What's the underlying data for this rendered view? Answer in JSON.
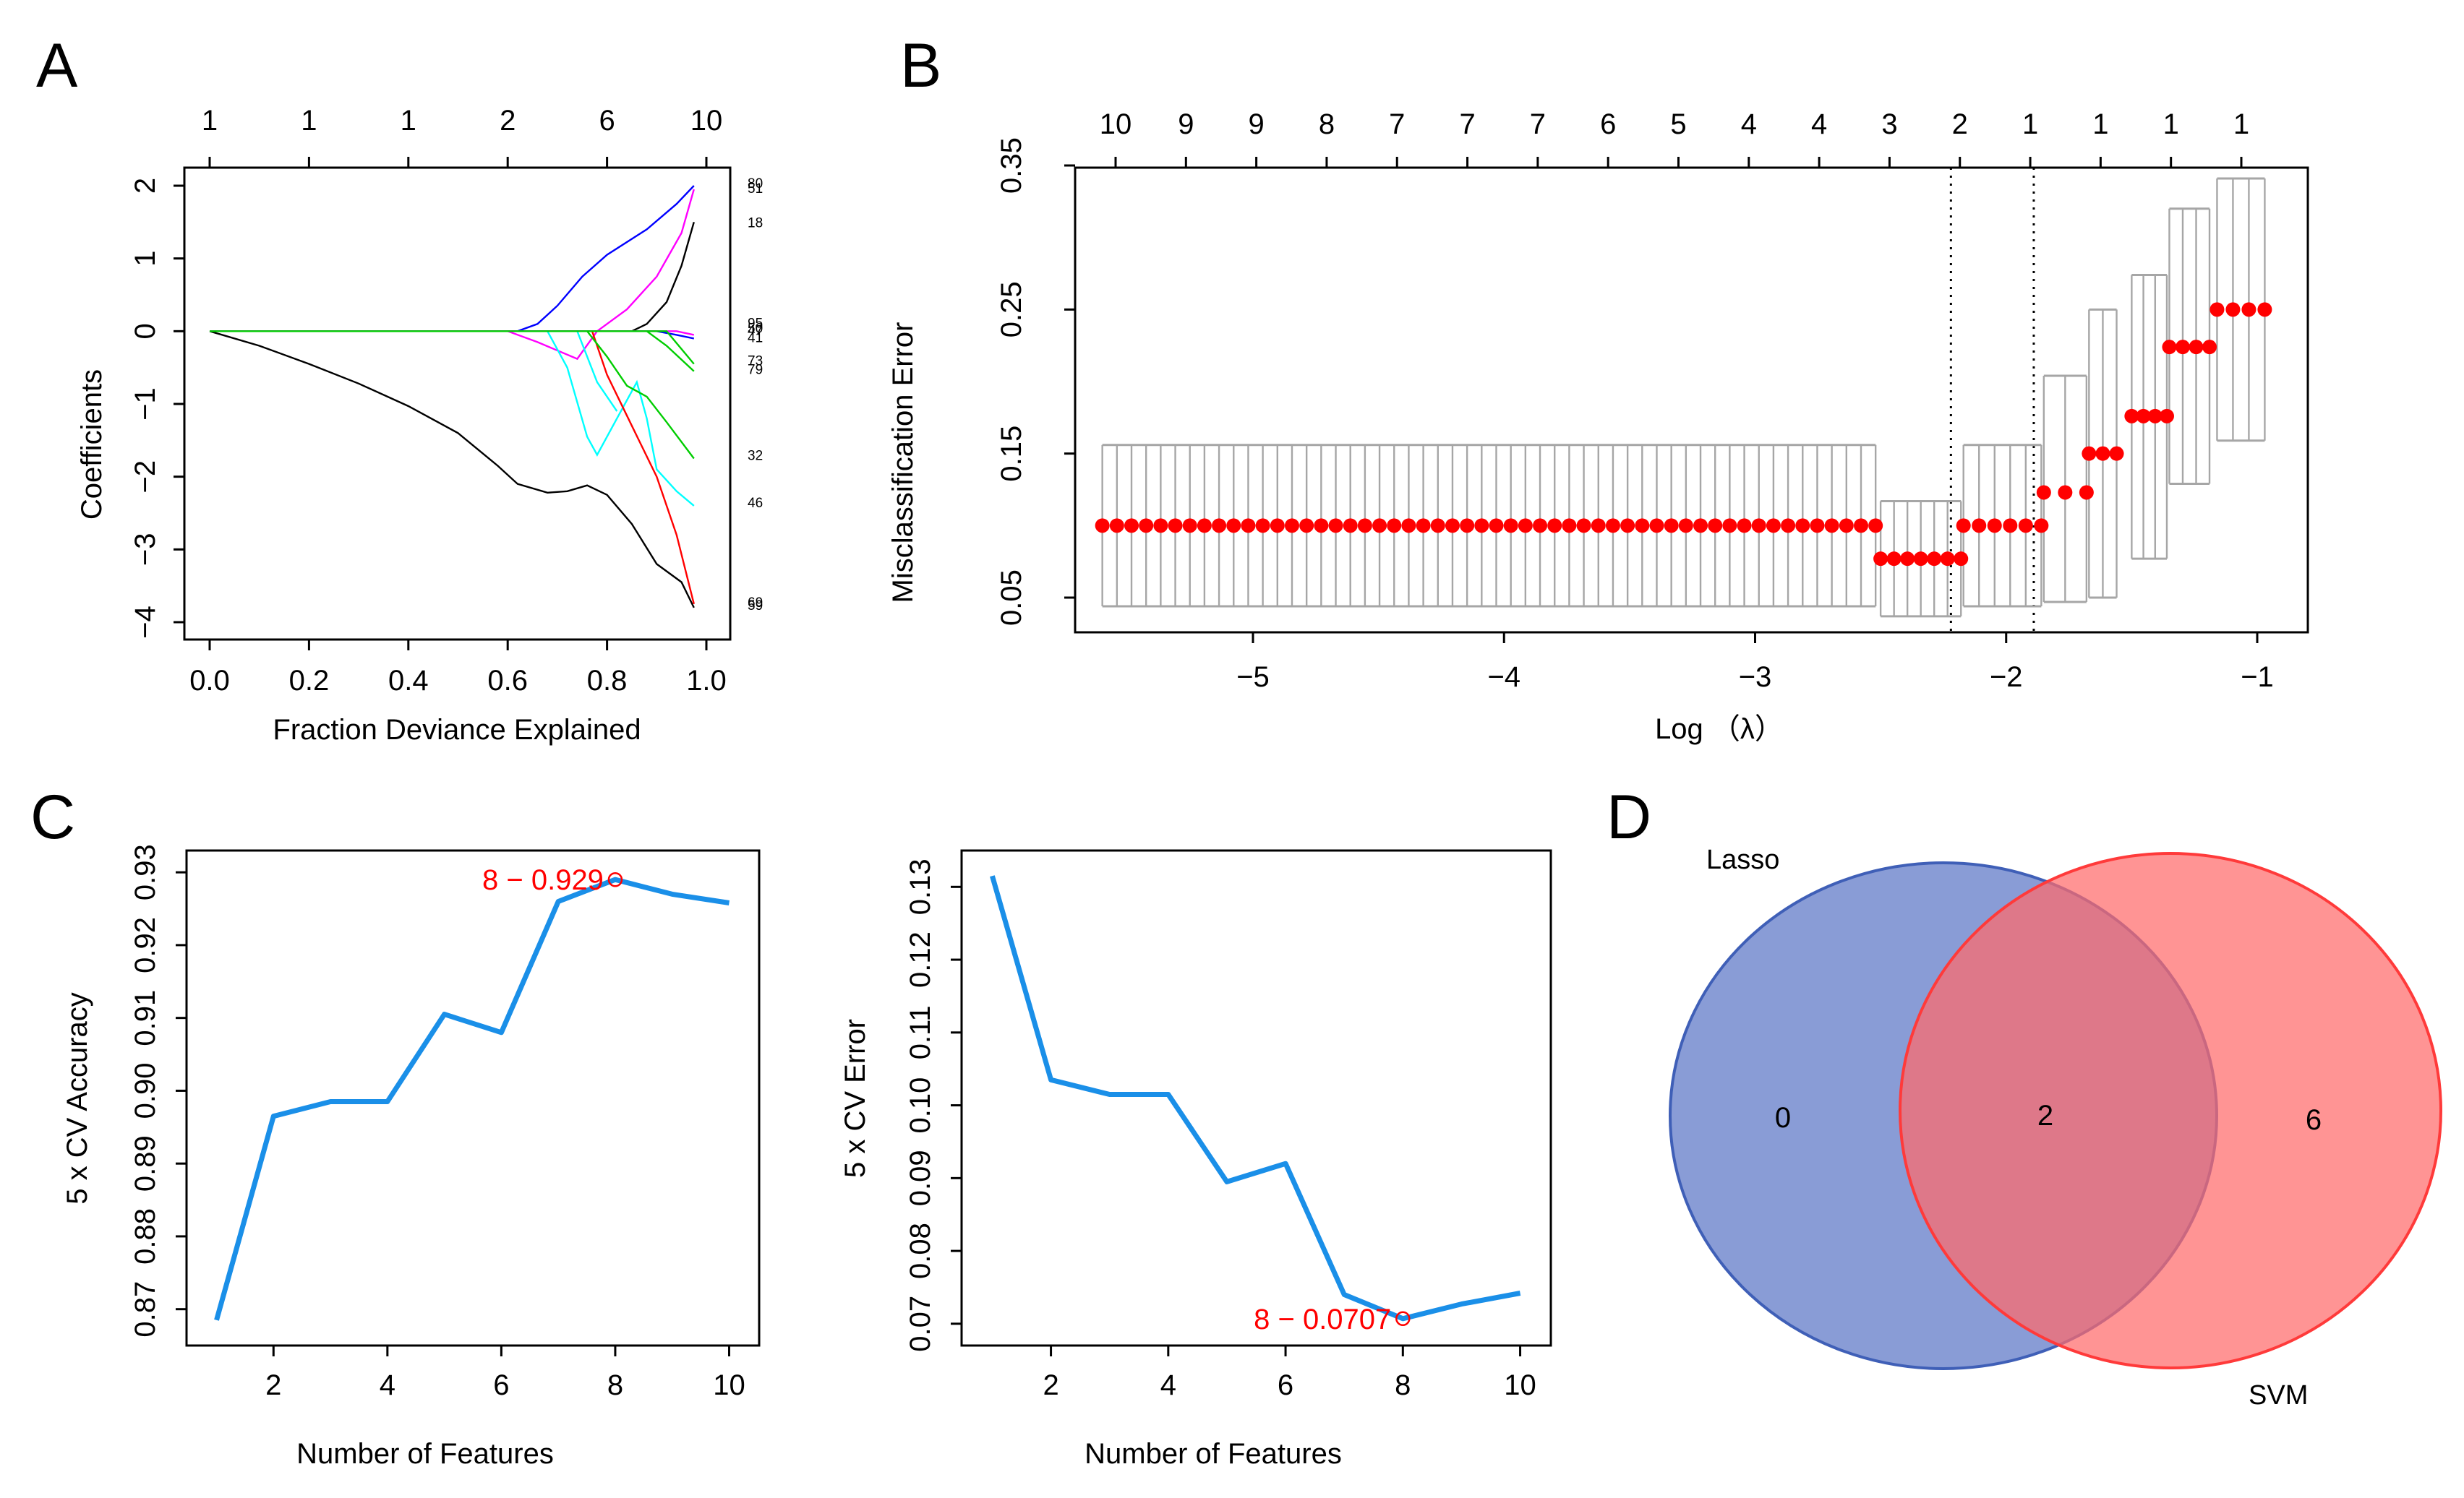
{
  "panels": {
    "a": "A",
    "b": "B",
    "c": "C",
    "d": "D"
  },
  "chart_data": [
    {
      "id": "A",
      "type": "line",
      "xlabel": "Fraction Deviance Explained",
      "ylabel": "Coefficients",
      "xlim": [
        0.0,
        1.0
      ],
      "ylim": [
        -4,
        2
      ],
      "x_ticks": [
        "0.0",
        "0.2",
        "0.4",
        "0.6",
        "0.8",
        "1.0"
      ],
      "y_ticks": [
        "-4",
        "-3",
        "-2",
        "-1",
        "0",
        "1",
        "2"
      ],
      "top_ticks": [
        "1",
        "1",
        "1",
        "2",
        "6",
        "10"
      ],
      "line_labels": [
        "80",
        "51",
        "18",
        "95",
        "50",
        "47",
        "41",
        "73",
        "79",
        "32",
        "46",
        "69",
        "59"
      ],
      "series": [
        {
          "name": "black",
          "color": "#000000",
          "points": [
            [
              0.0,
              0.0
            ],
            [
              0.1,
              -0.2
            ],
            [
              0.2,
              -0.45
            ],
            [
              0.3,
              -0.72
            ],
            [
              0.4,
              -1.03
            ],
            [
              0.5,
              -1.4
            ],
            [
              0.58,
              -1.85
            ],
            [
              0.62,
              -2.1
            ],
            [
              0.68,
              -2.22
            ],
            [
              0.72,
              -2.2
            ],
            [
              0.76,
              -2.12
            ],
            [
              0.8,
              -2.25
            ],
            [
              0.85,
              -2.65
            ],
            [
              0.9,
              -3.2
            ],
            [
              0.95,
              -3.45
            ],
            [
              0.975,
              -3.8
            ]
          ]
        },
        {
          "name": "black-rise",
          "color": "#000000",
          "points": [
            [
              0.0,
              0.0
            ],
            [
              0.85,
              0.0
            ],
            [
              0.88,
              0.1
            ],
            [
              0.92,
              0.4
            ],
            [
              0.95,
              0.9
            ],
            [
              0.975,
              1.5
            ]
          ]
        },
        {
          "name": "blue",
          "color": "#0000ff",
          "points": [
            [
              0.0,
              0.0
            ],
            [
              0.62,
              0.0
            ],
            [
              0.66,
              0.1
            ],
            [
              0.7,
              0.35
            ],
            [
              0.75,
              0.75
            ],
            [
              0.8,
              1.05
            ],
            [
              0.88,
              1.4
            ],
            [
              0.94,
              1.75
            ],
            [
              0.975,
              2.0
            ]
          ]
        },
        {
          "name": "magenta",
          "color": "#ff00ff",
          "points": [
            [
              0.0,
              0.0
            ],
            [
              0.6,
              0.0
            ],
            [
              0.66,
              -0.15
            ],
            [
              0.74,
              -0.38
            ],
            [
              0.78,
              0.0
            ],
            [
              0.84,
              0.3
            ],
            [
              0.9,
              0.75
            ],
            [
              0.95,
              1.35
            ],
            [
              0.975,
              1.95
            ]
          ]
        },
        {
          "name": "cyan",
          "color": "#00ffff",
          "points": [
            [
              0.0,
              0.0
            ],
            [
              0.68,
              0.0
            ],
            [
              0.72,
              -0.5
            ],
            [
              0.76,
              -1.45
            ],
            [
              0.78,
              -1.7
            ],
            [
              0.82,
              -1.2
            ],
            [
              0.86,
              -0.7
            ],
            [
              0.88,
              -1.2
            ],
            [
              0.9,
              -1.9
            ],
            [
              0.94,
              -2.2
            ],
            [
              0.975,
              -2.4
            ]
          ]
        },
        {
          "name": "cyan-2",
          "color": "#00ffff",
          "points": [
            [
              0.0,
              0.0
            ],
            [
              0.74,
              0.0
            ],
            [
              0.78,
              -0.7
            ],
            [
              0.82,
              -1.1
            ]
          ]
        },
        {
          "name": "red",
          "color": "#ff0000",
          "points": [
            [
              0.0,
              0.0
            ],
            [
              0.77,
              0.0
            ],
            [
              0.8,
              -0.6
            ],
            [
              0.85,
              -1.3
            ],
            [
              0.9,
              -2.0
            ],
            [
              0.94,
              -2.8
            ],
            [
              0.975,
              -3.75
            ]
          ]
        },
        {
          "name": "green",
          "color": "#00cd00",
          "points": [
            [
              0.0,
              0.0
            ],
            [
              0.76,
              0.0
            ],
            [
              0.8,
              -0.35
            ],
            [
              0.84,
              -0.75
            ],
            [
              0.88,
              -0.9
            ],
            [
              0.92,
              -1.25
            ],
            [
              0.975,
              -1.75
            ]
          ]
        },
        {
          "name": "green-2",
          "color": "#00cd00",
          "points": [
            [
              0.0,
              0.0
            ],
            [
              0.88,
              0.0
            ],
            [
              0.92,
              -0.2
            ],
            [
              0.975,
              -0.55
            ]
          ]
        },
        {
          "name": "blue-2",
          "color": "#0000ff",
          "points": [
            [
              0.0,
              0.0
            ],
            [
              0.9,
              0.0
            ],
            [
              0.94,
              -0.05
            ],
            [
              0.975,
              -0.1
            ]
          ]
        },
        {
          "name": "magenta-2",
          "color": "#ff00ff",
          "points": [
            [
              0.0,
              0.0
            ],
            [
              0.94,
              0.0
            ],
            [
              0.975,
              -0.05
            ]
          ]
        },
        {
          "name": "green-3",
          "color": "#00cd00",
          "points": [
            [
              0.0,
              0.0
            ],
            [
              0.92,
              0.0
            ],
            [
              0.975,
              -0.45
            ]
          ]
        }
      ]
    },
    {
      "id": "B",
      "type": "scatter",
      "xlabel": "Log （λ）",
      "ylabel": "Misclassification Error",
      "xlim": [
        -5.75,
        -0.8
      ],
      "ylim": [
        0.045,
        0.355
      ],
      "x_ticks": [
        -5,
        -4,
        -3,
        -2,
        -1
      ],
      "x_tick_labels": [
        "−5",
        "−4",
        "−3",
        "−2",
        "−1"
      ],
      "y_ticks": [
        "0.05",
        "0.15",
        "0.25",
        "0.35"
      ],
      "top_ticks": [
        "10",
        "9",
        "9",
        "8",
        "7",
        "7",
        "7",
        "6",
        "5",
        "4",
        "4",
        "3",
        "2",
        "1",
        "1",
        "1",
        "1"
      ],
      "vlines": [
        -2.22,
        -1.89
      ],
      "groups": [
        {
          "x_start": -5.6,
          "x_end": -2.52,
          "n": 54,
          "mean": 0.1,
          "lower": 0.044,
          "upper": 0.156
        },
        {
          "x_start": -2.5,
          "x_end": -2.18,
          "n": 7,
          "mean": 0.077,
          "lower": 0.037,
          "upper": 0.117
        },
        {
          "x_start": -2.17,
          "x_end": -1.86,
          "n": 6,
          "mean": 0.1,
          "lower": 0.044,
          "upper": 0.156
        },
        {
          "x_start": -1.85,
          "x_end": -1.68,
          "n": 3,
          "mean": 0.123,
          "lower": 0.047,
          "upper": 0.204
        },
        {
          "x_start": -1.67,
          "x_end": -1.56,
          "n": 3,
          "mean": 0.15,
          "lower": 0.05,
          "upper": 0.25
        },
        {
          "x_start": -1.5,
          "x_end": -1.36,
          "n": 4,
          "mean": 0.176,
          "lower": 0.077,
          "upper": 0.274
        },
        {
          "x_start": -1.35,
          "x_end": -1.19,
          "n": 4,
          "mean": 0.224,
          "lower": 0.129,
          "upper": 0.32
        },
        {
          "x_start": -1.16,
          "x_end": -0.97,
          "n": 4,
          "mean": 0.25,
          "lower": 0.159,
          "upper": 0.341
        }
      ]
    },
    {
      "id": "C-left",
      "type": "line",
      "xlabel": "Number of Features",
      "ylabel": "5 x CV Accuracy",
      "xlim": [
        0.6,
        10.4
      ],
      "ylim": [
        0.866,
        0.932
      ],
      "x_ticks": [
        "2",
        "4",
        "6",
        "8",
        "10"
      ],
      "y_ticks": [
        "0.87",
        "0.88",
        "0.89",
        "0.90",
        "0.91",
        "0.92",
        "0.93"
      ],
      "x": [
        1,
        2,
        3,
        4,
        5,
        6,
        7,
        8,
        9,
        10
      ],
      "values": [
        0.8685,
        0.8965,
        0.8985,
        0.8985,
        0.9105,
        0.908,
        0.926,
        0.929,
        0.927,
        0.9258
      ],
      "annotation": "8 − 0.929",
      "annotation_point": [
        8,
        0.929
      ]
    },
    {
      "id": "C-right",
      "type": "line",
      "xlabel": "Number of Features",
      "ylabel": "5 x CV Error",
      "xlim": [
        0.6,
        10.4
      ],
      "ylim": [
        0.068,
        0.134
      ],
      "x_ticks": [
        "2",
        "4",
        "6",
        "8",
        "10"
      ],
      "y_ticks": [
        "0.07",
        "0.08",
        "0.09",
        "0.10",
        "0.11",
        "0.12",
        "0.13"
      ],
      "x": [
        1,
        2,
        3,
        4,
        5,
        6,
        7,
        8,
        9,
        10
      ],
      "values": [
        0.1315,
        0.1035,
        0.1015,
        0.1015,
        0.0895,
        0.092,
        0.074,
        0.0707,
        0.0727,
        0.0742
      ],
      "annotation": "8 − 0.0707",
      "annotation_point": [
        8,
        0.0707
      ]
    }
  ],
  "venn": {
    "set_a": "Lasso",
    "set_b": "SVM",
    "only_a": "0",
    "both": "2",
    "only_b": "6",
    "color_a": "#5b76c6",
    "color_b": "#ff6b6b"
  }
}
